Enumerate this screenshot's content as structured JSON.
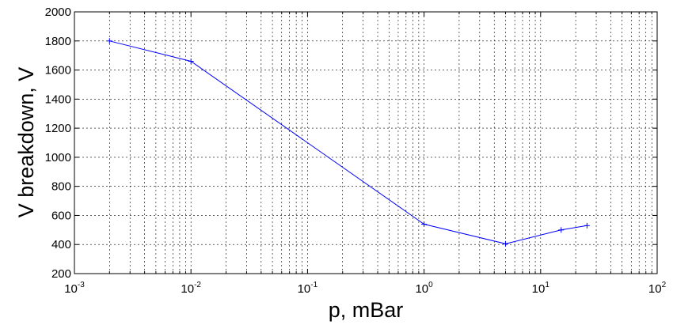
{
  "chart_data": {
    "type": "line",
    "title": "",
    "xlabel": "p, mBar",
    "ylabel": "V breakdown, V",
    "xscale": "log",
    "xlim": [
      0.001,
      100
    ],
    "ylim": [
      200,
      2000
    ],
    "grid": true,
    "x_tick_labels": [
      {
        "base": "10",
        "exp": "-3"
      },
      {
        "base": "10",
        "exp": "-2"
      },
      {
        "base": "10",
        "exp": "-1"
      },
      {
        "base": "10",
        "exp": "0"
      },
      {
        "base": "10",
        "exp": "1"
      },
      {
        "base": "10",
        "exp": "2"
      }
    ],
    "y_tick_labels": [
      "200",
      "400",
      "600",
      "800",
      "1000",
      "1200",
      "1400",
      "1600",
      "1800",
      "2000"
    ],
    "series": [
      {
        "color": "#0000ff",
        "marker": "plus",
        "x": [
          0.002,
          0.01,
          1,
          5,
          15,
          25
        ],
        "y": [
          1800,
          1660,
          540,
          405,
          500,
          530
        ]
      }
    ]
  }
}
